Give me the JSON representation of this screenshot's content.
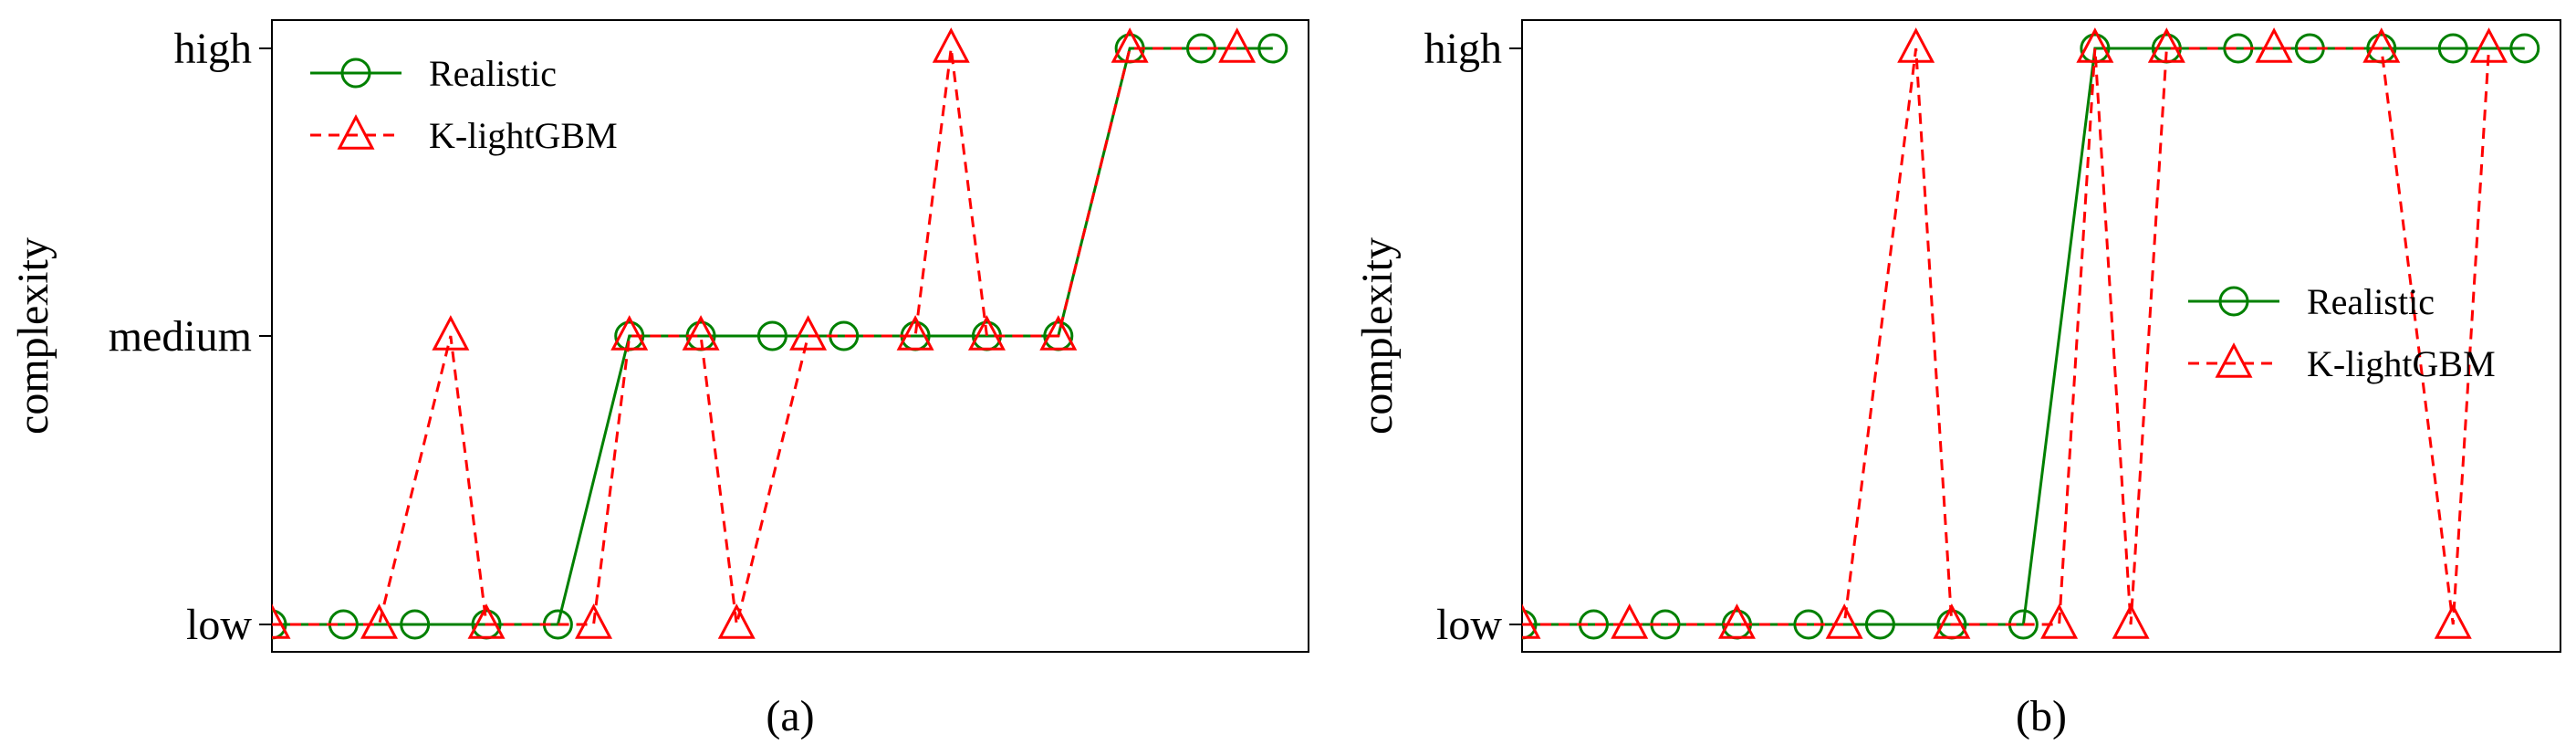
{
  "chart_data": [
    {
      "type": "line",
      "panel_label": "(a)",
      "ylabel": "complexity",
      "xlabel": "",
      "y_categories": [
        "low",
        "medium",
        "high"
      ],
      "x_range": [
        0,
        29
      ],
      "legend_placement": "top-left",
      "grid": false,
      "series": [
        {
          "name": "Realistic",
          "color": "#008000",
          "line_style": "solid",
          "marker": "circle",
          "x": [
            0,
            2,
            4,
            6,
            8,
            10,
            12,
            14,
            16,
            18,
            20,
            22,
            24,
            26,
            28
          ],
          "y": [
            "low",
            "low",
            "low",
            "low",
            "low",
            "medium",
            "medium",
            "medium",
            "medium",
            "medium",
            "medium",
            "medium",
            "high",
            "high",
            "high"
          ]
        },
        {
          "name": "K-lightGBM",
          "color": "#ff0000",
          "line_style": "dashed",
          "marker": "triangle",
          "x": [
            0,
            3,
            5,
            6,
            9,
            10,
            12,
            13,
            15,
            18,
            19,
            20,
            22,
            24,
            27
          ],
          "y": [
            "low",
            "low",
            "medium",
            "low",
            "low",
            "medium",
            "medium",
            "low",
            "medium",
            "medium",
            "high",
            "medium",
            "medium",
            "high",
            "high"
          ]
        }
      ]
    },
    {
      "type": "line",
      "panel_label": "(b)",
      "ylabel": "complexity",
      "xlabel": "",
      "y_categories": [
        "low",
        "high"
      ],
      "x_range": [
        0,
        29
      ],
      "legend_placement": "center-right",
      "grid": false,
      "series": [
        {
          "name": "Realistic",
          "color": "#008000",
          "line_style": "solid",
          "marker": "circle",
          "x": [
            0,
            2,
            4,
            6,
            8,
            10,
            12,
            14,
            16,
            18,
            20,
            22,
            24,
            26,
            28
          ],
          "y": [
            "low",
            "low",
            "low",
            "low",
            "low",
            "low",
            "low",
            "low",
            "high",
            "high",
            "high",
            "high",
            "high",
            "high",
            "high"
          ]
        },
        {
          "name": "K-lightGBM",
          "color": "#ff0000",
          "line_style": "dashed",
          "marker": "triangle",
          "x": [
            0,
            3,
            6,
            9,
            11,
            12,
            15,
            16,
            17,
            18,
            21,
            24,
            26,
            27
          ],
          "y": [
            "low",
            "low",
            "low",
            "low",
            "high",
            "low",
            "low",
            "high",
            "low",
            "high",
            "high",
            "high",
            "low",
            "high"
          ]
        }
      ]
    }
  ]
}
